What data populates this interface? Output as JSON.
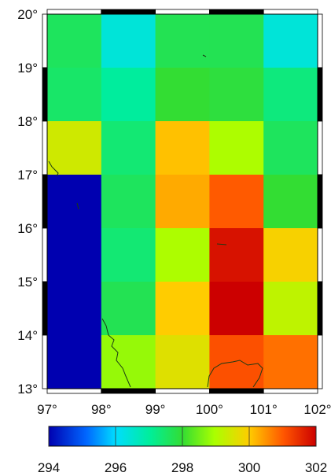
{
  "map": {
    "lon_ticks": [
      "97°",
      "98°",
      "99°",
      "100°",
      "101°",
      "102°"
    ],
    "lat_ticks": [
      "13°",
      "14°",
      "15°",
      "16°",
      "17°",
      "18°",
      "19°",
      "20°"
    ],
    "lon_range": [
      97,
      102
    ],
    "lat_range": [
      13,
      20
    ],
    "grid_columns_lon": [
      97,
      98,
      99,
      100,
      101,
      102
    ],
    "grid_rows_lat": [
      20,
      19,
      18,
      17,
      16,
      15,
      14,
      13
    ],
    "cell_values": [
      [
        297.6,
        296.4,
        297.7,
        297.7,
        296.4
      ],
      [
        297.5,
        297.0,
        298.0,
        297.9,
        297.3
      ],
      [
        299.4,
        297.4,
        300.1,
        299.0,
        297.6
      ],
      [
        294.0,
        297.6,
        300.3,
        301.0,
        298.0
      ],
      [
        294.0,
        297.4,
        299.0,
        301.8,
        299.9
      ],
      [
        294.0,
        297.7,
        300.0,
        302.0,
        299.2
      ],
      [
        294.0,
        298.8,
        299.6,
        301.1,
        300.8
      ]
    ],
    "coastline_color": "#1a3a14",
    "frame_color": "#000000"
  },
  "colorbar": {
    "min": 294,
    "max": 302,
    "labels": [
      "294",
      "296",
      "298",
      "300",
      "302"
    ],
    "gradient_stops": [
      "#0000b0",
      "#00aaff",
      "#00ffcc",
      "#33dd33",
      "#ccff00",
      "#ffcc00",
      "#ff5500",
      "#cc0000"
    ]
  }
}
